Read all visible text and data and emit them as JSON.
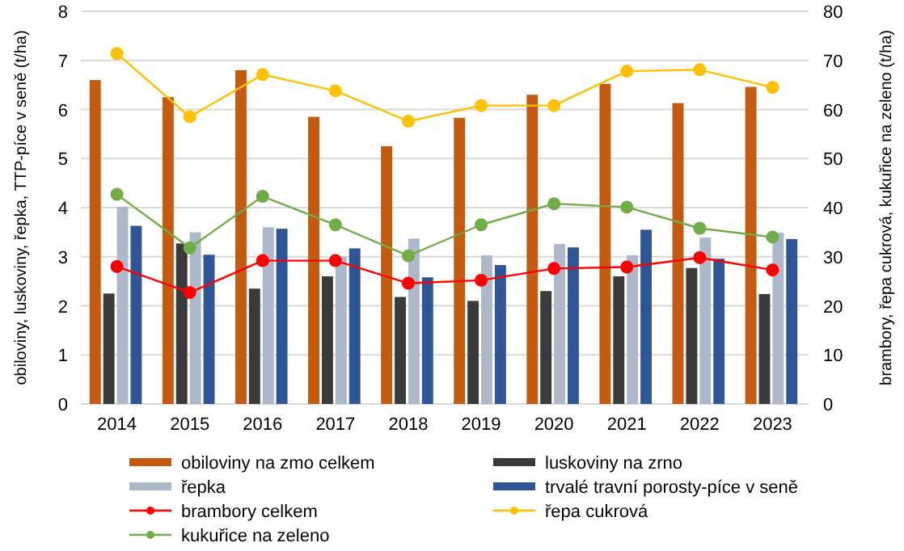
{
  "chart_data": {
    "type": "bar",
    "categories": [
      "2014",
      "2015",
      "2016",
      "2017",
      "2018",
      "2019",
      "2020",
      "2021",
      "2022",
      "2023"
    ],
    "ylabel": "obiloviny, luskoviny, řepka, TTP-píce  v seně (t/ha)",
    "y2label": "brambory, řepa cukrová, kukuřice na zeleno (t/ha)",
    "ylim": [
      0,
      8
    ],
    "yticks": [
      0,
      1,
      2,
      3,
      4,
      5,
      6,
      7,
      8
    ],
    "y2lim": [
      0,
      80
    ],
    "y2ticks": [
      0,
      10,
      20,
      30,
      40,
      50,
      60,
      70,
      80
    ],
    "grid": "y",
    "legend": "bottom",
    "series": [
      {
        "name": "obiloviny na zmo celkem",
        "color": "#c55a11",
        "values": [
          6.6,
          6.25,
          6.8,
          5.85,
          5.25,
          5.83,
          6.3,
          6.52,
          6.13,
          6.46
        ]
      },
      {
        "name": "luskoviny na zrno",
        "color": "#3a3a3a",
        "values": [
          2.25,
          3.27,
          2.35,
          2.6,
          2.18,
          2.1,
          2.3,
          2.6,
          2.77,
          2.24
        ]
      },
      {
        "name": "řepka",
        "color": "#adb9ca",
        "values": [
          4.02,
          3.5,
          3.6,
          3.0,
          3.37,
          3.03,
          3.26,
          3.03,
          3.39,
          3.49
        ]
      },
      {
        "name": "trvalé travní porosty-píce v seně",
        "color": "#2f5597",
        "values": [
          3.63,
          3.04,
          3.57,
          3.17,
          2.58,
          2.83,
          3.19,
          3.55,
          2.96,
          3.36
        ]
      },
      {
        "name": "brambory celkem",
        "type": "line",
        "axis": "y2",
        "marker": "circle",
        "color": "#ff0000",
        "values": [
          28,
          22.7,
          29.2,
          29.2,
          24.6,
          25.2,
          27.6,
          27.9,
          29.8,
          27.3
        ]
      },
      {
        "name": "řepa cukrová",
        "type": "line",
        "axis": "y2",
        "marker": "circle",
        "color": "#ffc000",
        "values": [
          71.4,
          58.5,
          67.1,
          63.8,
          57.6,
          60.8,
          60.8,
          67.8,
          68.1,
          64.5
        ]
      },
      {
        "name": "kukuřice na zeleno",
        "type": "line",
        "axis": "y2",
        "marker": "circle",
        "color": "#70ad47",
        "values": [
          42.7,
          31.8,
          42.3,
          36.5,
          30.2,
          36.5,
          40.8,
          40.1,
          35.8,
          34
        ]
      }
    ]
  }
}
